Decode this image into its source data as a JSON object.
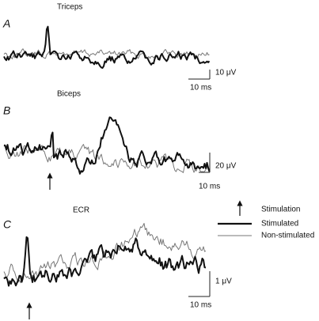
{
  "panels": [
    {
      "letter": "A",
      "title": "Triceps",
      "scale_y": "10 μV",
      "scale_x": "10 ms"
    },
    {
      "letter": "B",
      "title": "Biceps",
      "scale_y": "20 μV",
      "scale_x": "10 ms"
    },
    {
      "letter": "C",
      "title": "ECR",
      "scale_y": "1 μV",
      "scale_x": "10 ms"
    }
  ],
  "legend": {
    "stimulation": "Stimulation",
    "stimulated": "Stimulated",
    "non_stimulated": "Non-stimulated"
  }
}
